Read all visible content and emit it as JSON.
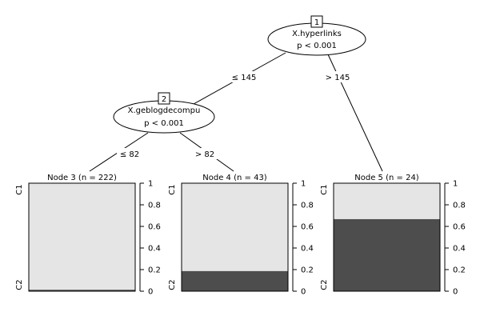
{
  "tree": {
    "colors": {
      "c1": "#e5e5e5",
      "c2": "#4d4d4d",
      "line": "#000000"
    },
    "inner_nodes": [
      {
        "id": "1",
        "variable": "X.hyperlinks",
        "pvalue": "p < 0.001"
      },
      {
        "id": "2",
        "variable": "X.geblogdecompu",
        "pvalue": "p < 0.001"
      }
    ],
    "edges": [
      {
        "label": "≤ 145"
      },
      {
        "label": "> 145"
      },
      {
        "label": "≤ 82"
      },
      {
        "label": "> 82"
      }
    ],
    "axis": {
      "ticks": [
        "0",
        "0.2",
        "0.4",
        "0.6",
        "0.8",
        "1"
      ],
      "top_class": "C1",
      "bottom_class": "C2"
    },
    "terminal_nodes": [
      {
        "title": "Node 3 (n = 222)",
        "c2_fraction": 0.013
      },
      {
        "title": "Node 4 (n = 43)",
        "c2_fraction": 0.186
      },
      {
        "title": "Node 5 (n = 24)",
        "c2_fraction": 0.667
      }
    ]
  }
}
